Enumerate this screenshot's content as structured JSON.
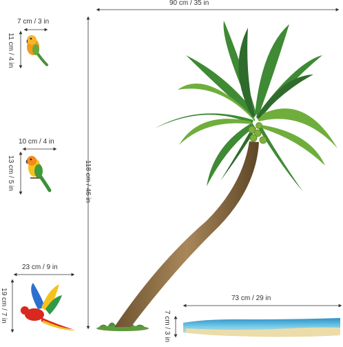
{
  "dimensions": {
    "tree_width": "90 cm / 35 in",
    "tree_height": "118 cm / 46 in",
    "bird1_width": "7 cm / 3 in",
    "bird1_height": "11 cm / 4 in",
    "bird2_width": "10 cm / 4 in",
    "bird2_height": "13 cm / 5 in",
    "macaw_width": "23 cm / 9 in",
    "macaw_height": "19 cm / 7 in",
    "beach_width": "73 cm / 29 in",
    "beach_height": "7 cm / 3 in"
  },
  "colors": {
    "leaf_dark": "#2f6b2c",
    "leaf_mid": "#4f9a3a",
    "leaf_light": "#9cc84a",
    "trunk": "#9a7a4a",
    "sea": "#3fa7d6",
    "sand": "#e9d9a8"
  }
}
